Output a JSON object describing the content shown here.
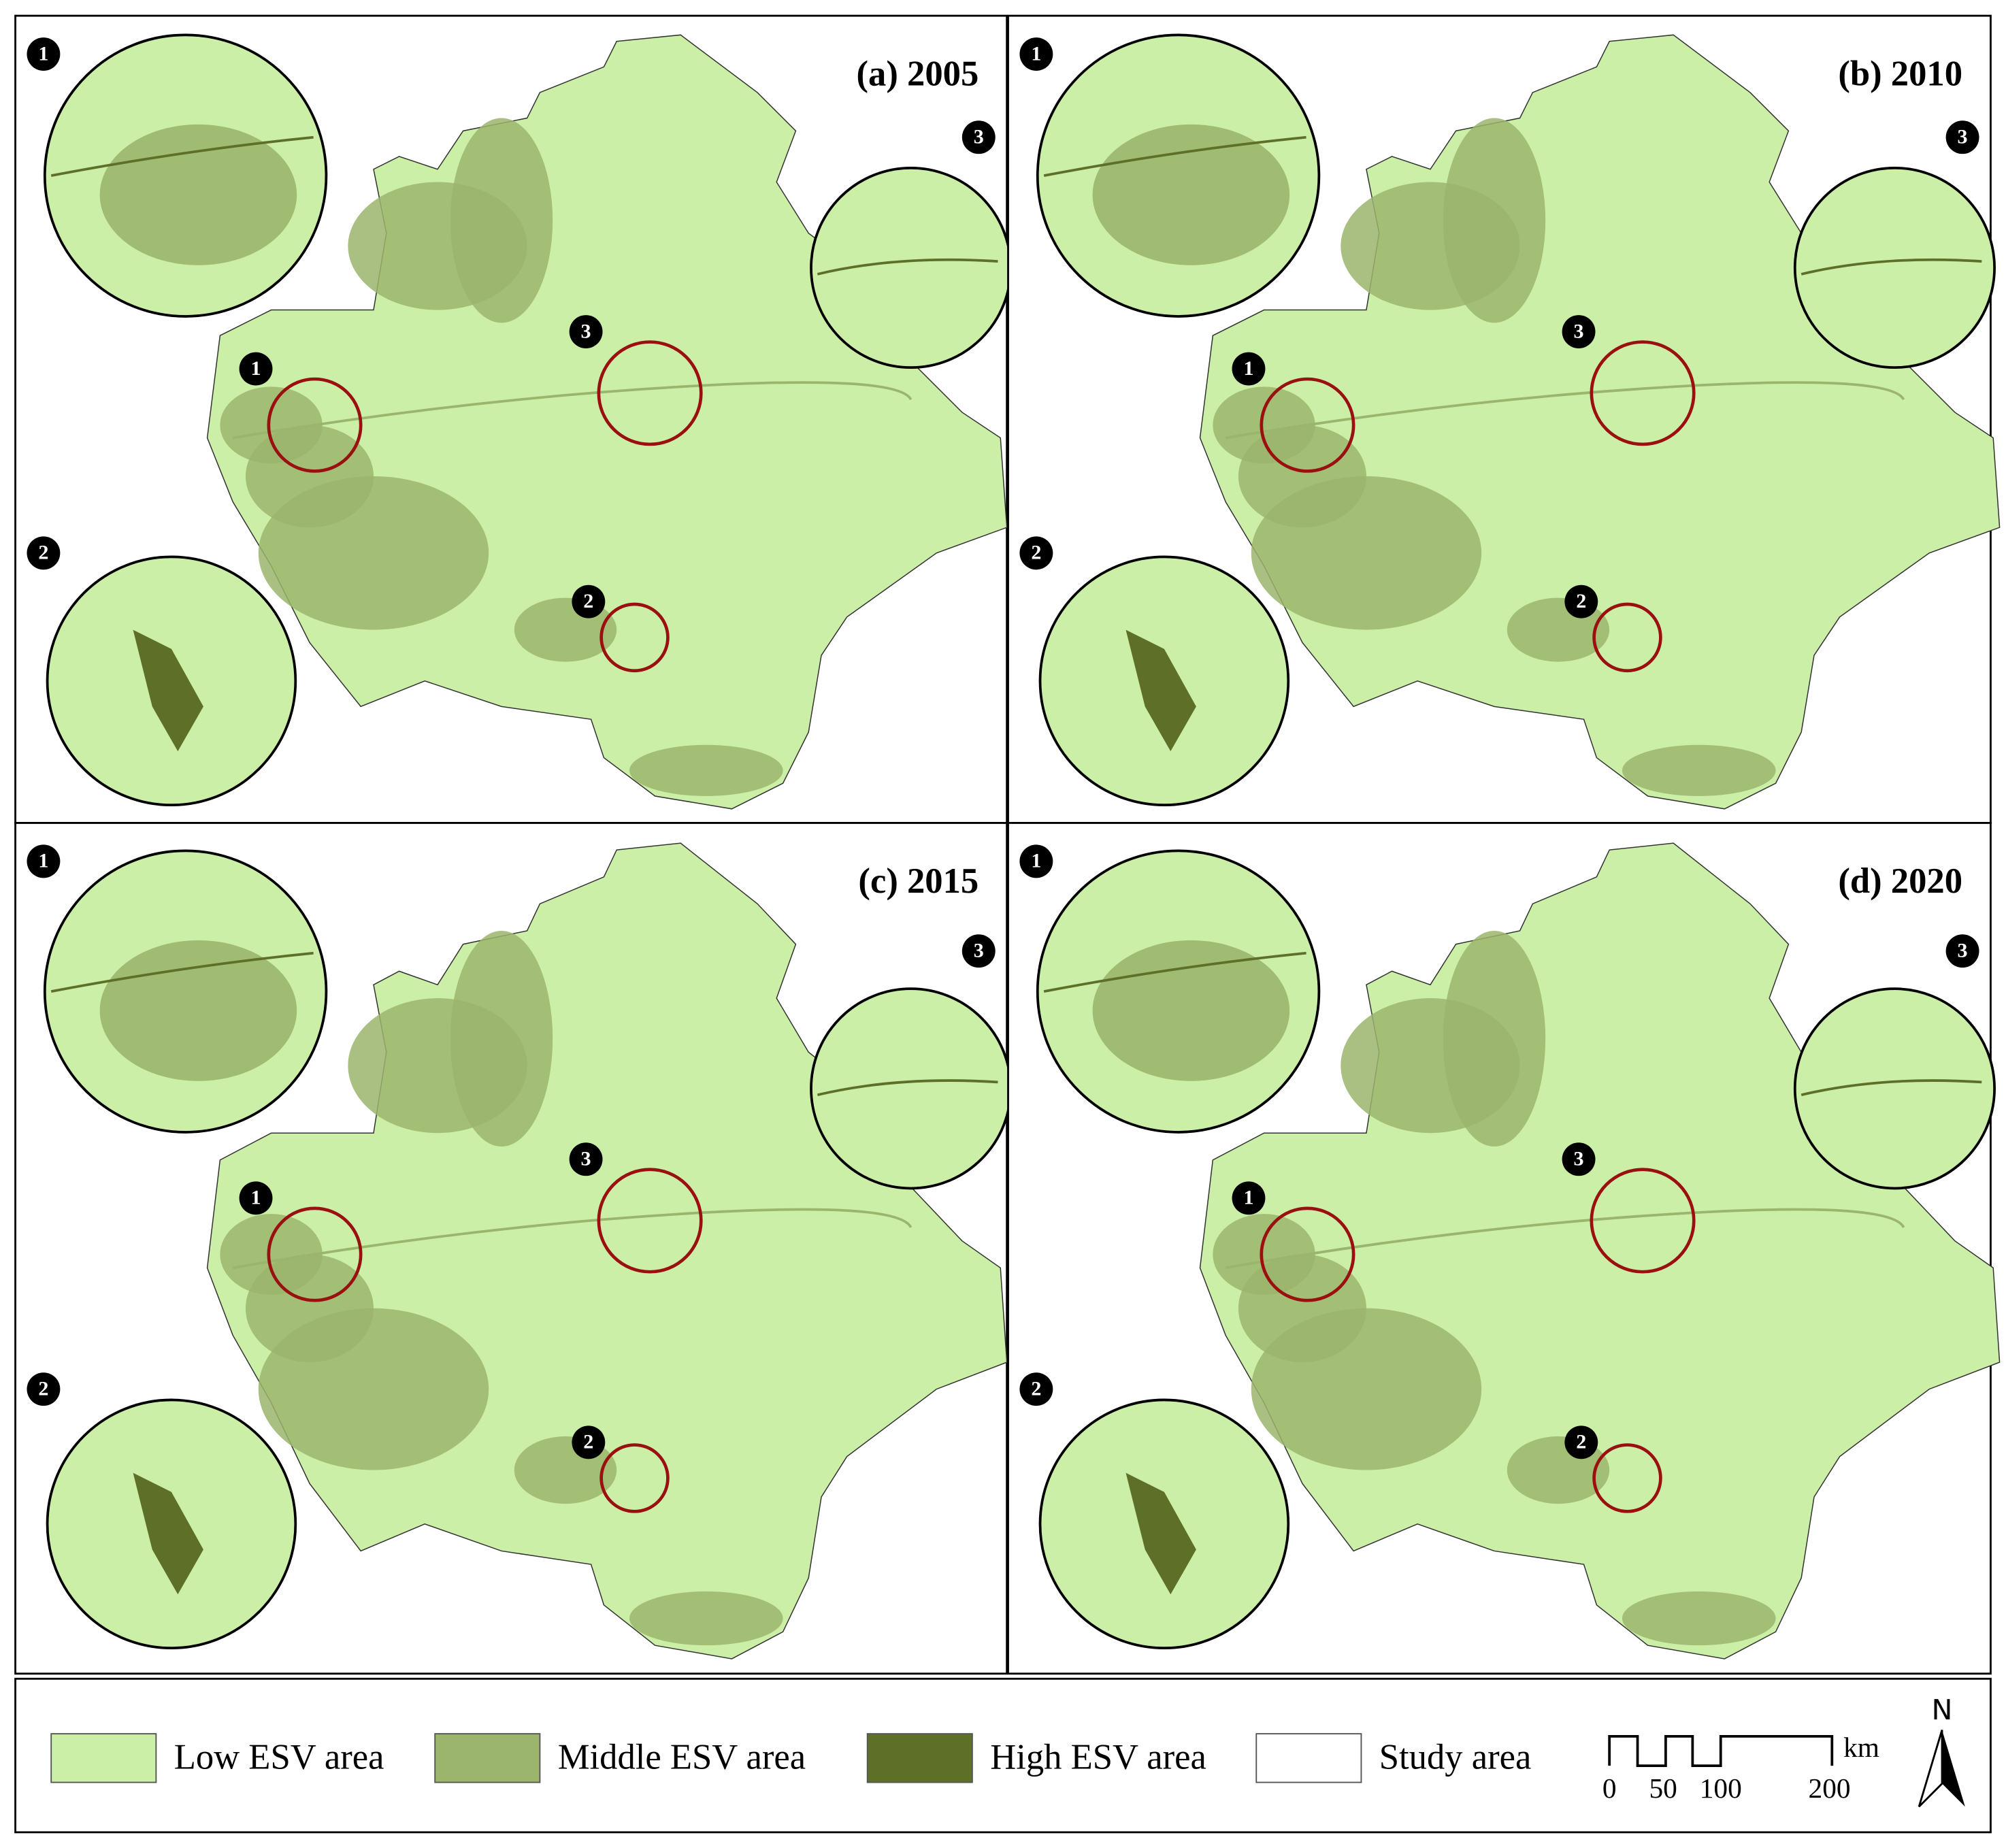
{
  "panels": [
    {
      "title": "(a) 2005",
      "markers": [
        "1",
        "2",
        "3"
      ]
    },
    {
      "title": "(b) 2010",
      "markers": [
        "1",
        "2",
        "3"
      ]
    },
    {
      "title": "(c) 2015",
      "markers": [
        "1",
        "2",
        "3"
      ]
    },
    {
      "title": "(d) 2020",
      "markers": [
        "1",
        "2",
        "3"
      ]
    }
  ],
  "legend": {
    "items": [
      {
        "label": "Low ESV area",
        "color": "#ccefa8"
      },
      {
        "label": "Middle ESV area",
        "color": "#9bb56c"
      },
      {
        "label": "High ESV area",
        "color": "#5e7027"
      },
      {
        "label": "Study area",
        "color": "#ffffff"
      }
    ]
  },
  "scale_bar": {
    "ticks": [
      "0",
      "50",
      "100",
      "200"
    ],
    "unit": "km"
  },
  "north": "N"
}
